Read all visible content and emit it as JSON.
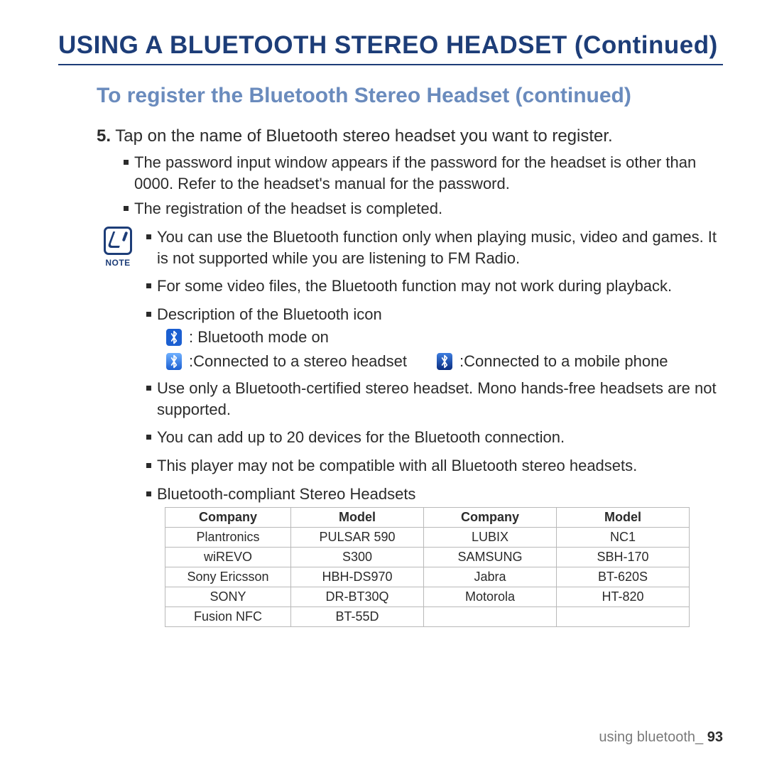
{
  "colors": {
    "heading": "#1d3d78",
    "subheading": "#6a8bbd",
    "text": "#2b2b2b",
    "table_border": "#b9b9b9",
    "footer_muted": "#7a7a7a",
    "bt_plain_bg": "#1b5fd1"
  },
  "heading": "USING A BLUETOOTH STEREO HEADSET (Continued)",
  "subheading": "To register the Bluetooth Stereo Headset (continued)",
  "step_number": "5.",
  "step_text": "Tap on the name of Bluetooth stereo headset you want to register.",
  "step_sub1": "The password input window appears if the password for the headset is other than 0000. Refer to the headset's manual for the password.",
  "step_sub2": "The registration of the headset is completed.",
  "note_label": "NOTE",
  "note1": "You can use the Bluetooth function only when playing music, video and games. It is not supported while you are listening to FM Radio.",
  "note2": "For some video files, the Bluetooth function may not work during playback.",
  "note3": "Description of the Bluetooth icon",
  "icon_mode_on": ": Bluetooth mode on",
  "icon_stereo": ":Connected to a stereo headset",
  "icon_mobile": ":Connected to a mobile phone",
  "note4": "Use only a Bluetooth-certified stereo headset. Mono hands-free headsets are not supported.",
  "note5": "You can add up to 20 devices for the Bluetooth connection.",
  "note6": "This player may not be compatible with all Bluetooth stereo headsets.",
  "note7": "Bluetooth-compliant Stereo Headsets",
  "table": {
    "headers": [
      "Company",
      "Model",
      "Company",
      "Model"
    ],
    "rows": [
      [
        "Plantronics",
        "PULSAR 590",
        "LUBIX",
        "NC1"
      ],
      [
        "wiREVO",
        "S300",
        "SAMSUNG",
        "SBH-170"
      ],
      [
        "Sony Ericsson",
        "HBH-DS970",
        "Jabra",
        "BT-620S"
      ],
      [
        "SONY",
        "DR-BT30Q",
        "Motorola",
        "HT-820"
      ],
      [
        "Fusion NFC",
        "BT-55D",
        "",
        ""
      ]
    ]
  },
  "footer_text": "using bluetooth_",
  "footer_page": "93"
}
